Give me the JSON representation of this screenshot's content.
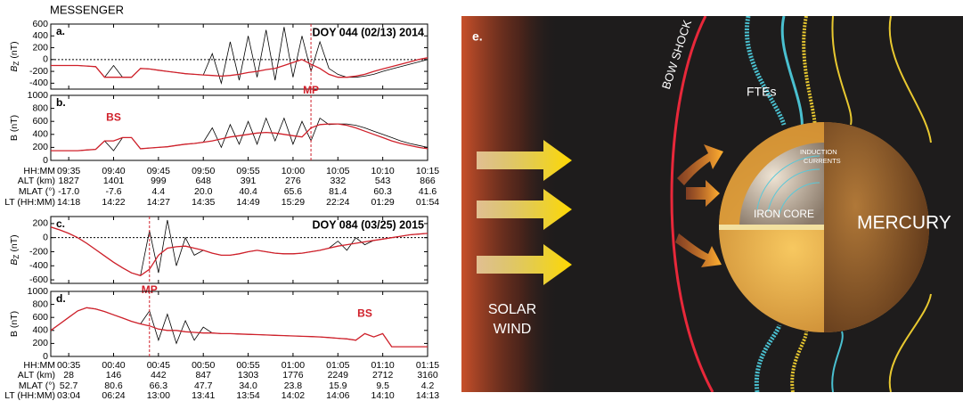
{
  "header": "MESSENGER",
  "chart_data": [
    {
      "type": "line",
      "panel": "a.",
      "title": "DOY 044 (02/13) 2014",
      "ylabel": "B",
      "ylabel_sub": "Z",
      "ylabel_unit": "(nT)",
      "x": [
        "09:33",
        "09:34",
        "09:35",
        "09:36",
        "09:37",
        "09:38",
        "09:39",
        "09:40",
        "09:41",
        "09:42",
        "09:43",
        "09:44",
        "09:45",
        "09:46",
        "09:47",
        "09:48",
        "09:49",
        "09:50",
        "09:51",
        "09:52",
        "09:53",
        "09:54",
        "09:55",
        "09:56",
        "09:57",
        "09:58",
        "09:59",
        "10:00",
        "10:01",
        "10:02",
        "10:03",
        "10:04",
        "10:05",
        "10:06",
        "10:07",
        "10:08",
        "10:09",
        "10:10",
        "10:11",
        "10:12",
        "10:13",
        "10:14",
        "10:15"
      ],
      "xlim": [
        "09:33",
        "10:15"
      ],
      "xticks": [
        "09:35",
        "09:40",
        "09:45",
        "09:50",
        "09:55",
        "10:00",
        "10:05",
        "10:10",
        "10:15"
      ],
      "xtick_labels": false,
      "ylim": [
        -500,
        600
      ],
      "yticks": [
        600,
        400,
        200,
        0,
        -200,
        -400
      ],
      "zero_line": true,
      "series": [
        {
          "color": "#000000",
          "values": [
            -100,
            -100,
            -100,
            -100,
            -110,
            -120,
            -300,
            -100,
            -300,
            -300,
            -150,
            -160,
            -180,
            -200,
            -220,
            -240,
            -250,
            -260,
            100,
            -400,
            300,
            -350,
            400,
            -300,
            500,
            -350,
            550,
            -300,
            400,
            -200,
            300,
            -150,
            -250,
            -300,
            -300,
            -280,
            -250,
            -200,
            -160,
            -120,
            -80,
            -40,
            0
          ]
        },
        {
          "color": "#d0202a",
          "values": [
            -100,
            -100,
            -100,
            -100,
            -110,
            -120,
            -300,
            -300,
            -300,
            -300,
            -150,
            -160,
            -180,
            -200,
            -220,
            -240,
            -250,
            -260,
            -270,
            -280,
            -270,
            -250,
            -220,
            -200,
            -170,
            -150,
            -100,
            -50,
            0,
            -80,
            -150,
            -250,
            -300,
            -300,
            -280,
            -250,
            -200,
            -160,
            -120,
            -80,
            -40,
            0,
            30
          ]
        }
      ],
      "annotations": [
        {
          "x": "10:02",
          "line": true
        }
      ]
    },
    {
      "type": "line",
      "panel": "b.",
      "ylabel": "B (nT)",
      "x": [
        "09:33",
        "09:34",
        "09:35",
        "09:36",
        "09:37",
        "09:38",
        "09:39",
        "09:40",
        "09:41",
        "09:42",
        "09:43",
        "09:44",
        "09:45",
        "09:46",
        "09:47",
        "09:48",
        "09:49",
        "09:50",
        "09:51",
        "09:52",
        "09:53",
        "09:54",
        "09:55",
        "09:56",
        "09:57",
        "09:58",
        "09:59",
        "10:00",
        "10:01",
        "10:02",
        "10:03",
        "10:04",
        "10:05",
        "10:06",
        "10:07",
        "10:08",
        "10:09",
        "10:10",
        "10:11",
        "10:12",
        "10:13",
        "10:14",
        "10:15"
      ],
      "xlim": [
        "09:33",
        "10:15"
      ],
      "xticks": [
        "09:35",
        "09:40",
        "09:45",
        "09:50",
        "09:55",
        "10:00",
        "10:05",
        "10:10",
        "10:15"
      ],
      "xtick_labels": true,
      "ylim": [
        0,
        1000
      ],
      "yticks": [
        1000,
        800,
        600,
        400,
        200,
        0
      ],
      "series": [
        {
          "color": "#000000",
          "values": [
            150,
            150,
            150,
            150,
            160,
            170,
            300,
            150,
            350,
            350,
            180,
            190,
            200,
            210,
            230,
            250,
            260,
            280,
            500,
            200,
            550,
            250,
            600,
            250,
            650,
            300,
            650,
            250,
            600,
            300,
            650,
            550,
            560,
            560,
            540,
            500,
            450,
            400,
            350,
            300,
            260,
            230,
            200
          ]
        },
        {
          "color": "#d0202a",
          "values": [
            150,
            150,
            150,
            150,
            160,
            170,
            300,
            300,
            350,
            350,
            180,
            190,
            200,
            210,
            230,
            250,
            260,
            280,
            300,
            330,
            360,
            380,
            400,
            420,
            430,
            420,
            400,
            380,
            360,
            500,
            550,
            560,
            560,
            540,
            500,
            450,
            400,
            350,
            300,
            260,
            230,
            200,
            180
          ]
        }
      ],
      "annotations": [
        {
          "text": "MP",
          "x": "10:02",
          "line": true
        },
        {
          "text": "BS",
          "x": "09:40",
          "line": false
        }
      ]
    },
    {
      "type": "line",
      "panel": "c.",
      "title": "DOY 084 (03/25) 2015",
      "ylabel": "B",
      "ylabel_sub": "Z",
      "ylabel_unit": "(nT)",
      "x": [
        "00:33",
        "00:34",
        "00:35",
        "00:36",
        "00:37",
        "00:38",
        "00:39",
        "00:40",
        "00:41",
        "00:42",
        "00:43",
        "00:44",
        "00:45",
        "00:46",
        "00:47",
        "00:48",
        "00:49",
        "00:50",
        "00:51",
        "00:52",
        "00:53",
        "00:54",
        "00:55",
        "00:56",
        "00:57",
        "00:58",
        "00:59",
        "01:00",
        "01:01",
        "01:02",
        "01:03",
        "01:04",
        "01:05",
        "01:06",
        "01:07",
        "01:08",
        "01:09",
        "01:10",
        "01:11",
        "01:12",
        "01:13",
        "01:14",
        "01:15"
      ],
      "xlim": [
        "00:33",
        "01:15"
      ],
      "xticks": [
        "00:35",
        "00:40",
        "00:45",
        "00:50",
        "00:55",
        "01:00",
        "01:05",
        "01:10",
        "01:15"
      ],
      "xtick_labels": false,
      "ylim": [
        -650,
        300
      ],
      "yticks": [
        200,
        0,
        -200,
        -400,
        -600
      ],
      "zero_line": true,
      "series": [
        {
          "color": "#000000",
          "values": [
            150,
            110,
            60,
            0,
            -80,
            -170,
            -260,
            -350,
            -430,
            -500,
            -540,
            100,
            -500,
            250,
            -400,
            0,
            -250,
            -180,
            -220,
            -250,
            -250,
            -230,
            -200,
            -180,
            -200,
            -220,
            -230,
            -230,
            -220,
            -200,
            -180,
            -150,
            -50,
            -180,
            0,
            -100,
            -40,
            -20,
            0,
            20,
            40,
            50,
            60
          ]
        },
        {
          "color": "#d0202a",
          "values": [
            150,
            110,
            60,
            0,
            -80,
            -170,
            -260,
            -350,
            -430,
            -500,
            -540,
            -450,
            -250,
            -150,
            -130,
            -120,
            -150,
            -180,
            -220,
            -250,
            -250,
            -230,
            -200,
            -180,
            -200,
            -220,
            -230,
            -230,
            -220,
            -200,
            -180,
            -150,
            -120,
            -100,
            -80,
            -60,
            -40,
            -20,
            0,
            20,
            40,
            50,
            60
          ]
        }
      ],
      "annotations": [
        {
          "text": "MP",
          "x": "00:44",
          "line": true
        }
      ]
    },
    {
      "type": "line",
      "panel": "d.",
      "ylabel": "B (nT)",
      "x": [
        "00:33",
        "00:34",
        "00:35",
        "00:36",
        "00:37",
        "00:38",
        "00:39",
        "00:40",
        "00:41",
        "00:42",
        "00:43",
        "00:44",
        "00:45",
        "00:46",
        "00:47",
        "00:48",
        "00:49",
        "00:50",
        "00:51",
        "00:52",
        "00:53",
        "00:54",
        "00:55",
        "00:56",
        "00:57",
        "00:58",
        "00:59",
        "01:00",
        "01:01",
        "01:02",
        "01:03",
        "01:04",
        "01:05",
        "01:06",
        "01:07",
        "01:08",
        "01:09",
        "01:10",
        "01:11",
        "01:12",
        "01:13",
        "01:14",
        "01:15"
      ],
      "xlim": [
        "00:33",
        "01:15"
      ],
      "xticks": [
        "00:35",
        "00:40",
        "00:45",
        "00:50",
        "00:55",
        "01:00",
        "01:05",
        "01:10",
        "01:15"
      ],
      "xtick_labels": true,
      "ylim": [
        0,
        1000
      ],
      "yticks": [
        1000,
        800,
        600,
        400,
        200,
        0
      ],
      "series": [
        {
          "color": "#000000",
          "values": [
            400,
            500,
            600,
            700,
            750,
            730,
            690,
            640,
            590,
            540,
            500,
            700,
            250,
            650,
            200,
            550,
            250,
            450,
            360,
            350,
            350,
            345,
            340,
            335,
            330,
            325,
            320,
            315,
            310,
            305,
            300,
            290,
            280,
            270,
            250,
            350,
            300,
            350,
            150,
            150,
            150,
            150,
            150
          ]
        },
        {
          "color": "#d0202a",
          "values": [
            400,
            500,
            600,
            700,
            750,
            730,
            690,
            640,
            590,
            540,
            500,
            470,
            420,
            400,
            400,
            380,
            370,
            360,
            360,
            350,
            350,
            345,
            340,
            335,
            330,
            325,
            320,
            315,
            310,
            305,
            300,
            290,
            280,
            270,
            250,
            350,
            300,
            350,
            150,
            150,
            150,
            150,
            150
          ]
        }
      ],
      "annotations": [
        {
          "x": "00:44",
          "line": true
        },
        {
          "text": "BS",
          "x": "01:08",
          "line": false
        }
      ]
    }
  ],
  "ephemeris": [
    {
      "labels": [
        "HH:MM",
        "ALT (km)",
        "MLAT (°)",
        "LT (HH:MM)"
      ],
      "rows": [
        [
          "1827",
          "1401",
          "999",
          "648",
          "391",
          "276",
          "332",
          "543",
          "866"
        ],
        [
          "-17.0",
          "-7.6",
          "4.4",
          "20.0",
          "40.4",
          "65.6",
          "81.4",
          "60.3",
          "41.6"
        ],
        [
          "14:18",
          "14:22",
          "14:27",
          "14:35",
          "14:49",
          "15:29",
          "22:24",
          "01:29",
          "01:54"
        ]
      ]
    },
    {
      "labels": [
        "HH:MM",
        "ALT (km)",
        "MLAT (°)",
        "LT (HH:MM)"
      ],
      "rows": [
        [
          "28",
          "146",
          "442",
          "847",
          "1303",
          "1776",
          "2249",
          "2712",
          "3160"
        ],
        [
          "52.7",
          "80.6",
          "66.3",
          "47.7",
          "34.0",
          "23.8",
          "15.9",
          "9.5",
          "4.2"
        ],
        [
          "03:04",
          "06:24",
          "13:00",
          "13:41",
          "13:54",
          "14:02",
          "14:06",
          "14:10",
          "14:13"
        ]
      ]
    }
  ],
  "illustration": {
    "panel": "e.",
    "bow_shock": "BOW SHOCK",
    "ftes": "FTEs",
    "induction": [
      "INDUCTION",
      "CURRENTS"
    ],
    "core": "IRON CORE",
    "planet": "MERCURY",
    "wind": [
      "SOLAR",
      "WIND"
    ]
  }
}
